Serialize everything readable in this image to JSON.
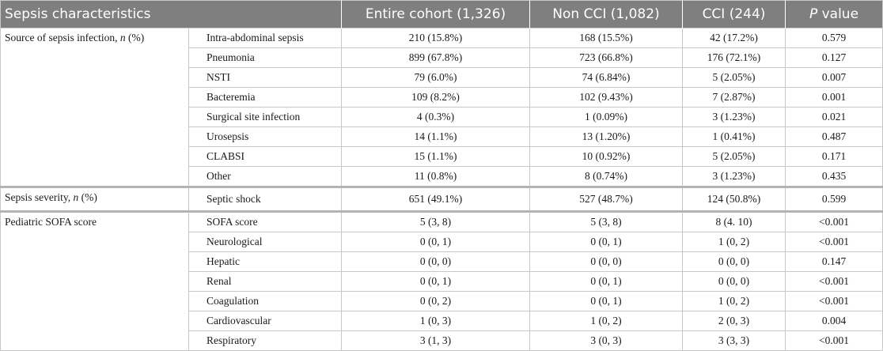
{
  "header": {
    "col1": "Sepsis characteristics",
    "col3": "Entire cohort (1,326)",
    "col4": "Non CCI (1,082)",
    "col5": "CCI (244)",
    "col6_italic": "P",
    "col6_rest": " value"
  },
  "groups": [
    {
      "label_prefix": "Source of sepsis infection, ",
      "label_italic": "n",
      "label_suffix": " (%)",
      "rows": [
        {
          "name": "Intra-abdominal sepsis",
          "entire": "210 (15.8%)",
          "non_cci": "168 (15.5%)",
          "cci": "42 (17.2%)",
          "p": "0.579"
        },
        {
          "name": "Pneumonia",
          "entire": "899 (67.8%)",
          "non_cci": "723 (66.8%)",
          "cci": "176 (72.1%)",
          "p": "0.127"
        },
        {
          "name": "NSTI",
          "entire": "79 (6.0%)",
          "non_cci": "74 (6.84%)",
          "cci": "5 (2.05%)",
          "p": "0.007"
        },
        {
          "name": "Bacteremia",
          "entire": "109 (8.2%)",
          "non_cci": "102 (9.43%)",
          "cci": "7 (2.87%)",
          "p": "0.001"
        },
        {
          "name": "Surgical site infection",
          "entire": "4 (0.3%)",
          "non_cci": "1 (0.09%)",
          "cci": "3 (1.23%)",
          "p": "0.021"
        },
        {
          "name": "Urosepsis",
          "entire": "14 (1.1%)",
          "non_cci": "13 (1.20%)",
          "cci": "1 (0.41%)",
          "p": "0.487"
        },
        {
          "name": "CLABSI",
          "entire": "15 (1.1%)",
          "non_cci": "10 (0.92%)",
          "cci": "5 (2.05%)",
          "p": "0.171"
        },
        {
          "name": "Other",
          "entire": "11 (0.8%)",
          "non_cci": "8 (0.74%)",
          "cci": "3 (1.23%)",
          "p": "0.435"
        }
      ]
    },
    {
      "label_prefix": "Sepsis severity, ",
      "label_italic": "n",
      "label_suffix": " (%)",
      "rows": [
        {
          "name": "Septic shock",
          "entire": "651 (49.1%)",
          "non_cci": "527 (48.7%)",
          "cci": "124 (50.8%)",
          "p": "0.599"
        }
      ]
    },
    {
      "label_prefix": "Pediatric SOFA score",
      "label_italic": "",
      "label_suffix": "",
      "rows": [
        {
          "name": "SOFA score",
          "entire": "5 (3, 8)",
          "non_cci": "5 (3, 8)",
          "cci": "8 (4. 10)",
          "p": "<0.001"
        },
        {
          "name": "Neurological",
          "entire": "0 (0, 1)",
          "non_cci": "0 (0, 1)",
          "cci": "1 (0, 2)",
          "p": "<0.001"
        },
        {
          "name": "Hepatic",
          "entire": "0 (0, 0)",
          "non_cci": "0 (0, 0)",
          "cci": "0 (0, 0)",
          "p": "0.147"
        },
        {
          "name": "Renal",
          "entire": "0 (0, 1)",
          "non_cci": "0 (0, 1)",
          "cci": "0 (0, 0)",
          "p": "<0.001"
        },
        {
          "name": "Coagulation",
          "entire": "0 (0, 2)",
          "non_cci": "0 (0, 1)",
          "cci": "1 (0, 2)",
          "p": "<0.001"
        },
        {
          "name": "Cardiovascular",
          "entire": "1 (0, 3)",
          "non_cci": "1 (0, 2)",
          "cci": "2 (0, 3)",
          "p": "0.004"
        },
        {
          "name": "Respiratory",
          "entire": "3 (1, 3)",
          "non_cci": "3 (0, 3)",
          "cci": "3 (3, 3)",
          "p": "<0.001"
        }
      ]
    }
  ]
}
